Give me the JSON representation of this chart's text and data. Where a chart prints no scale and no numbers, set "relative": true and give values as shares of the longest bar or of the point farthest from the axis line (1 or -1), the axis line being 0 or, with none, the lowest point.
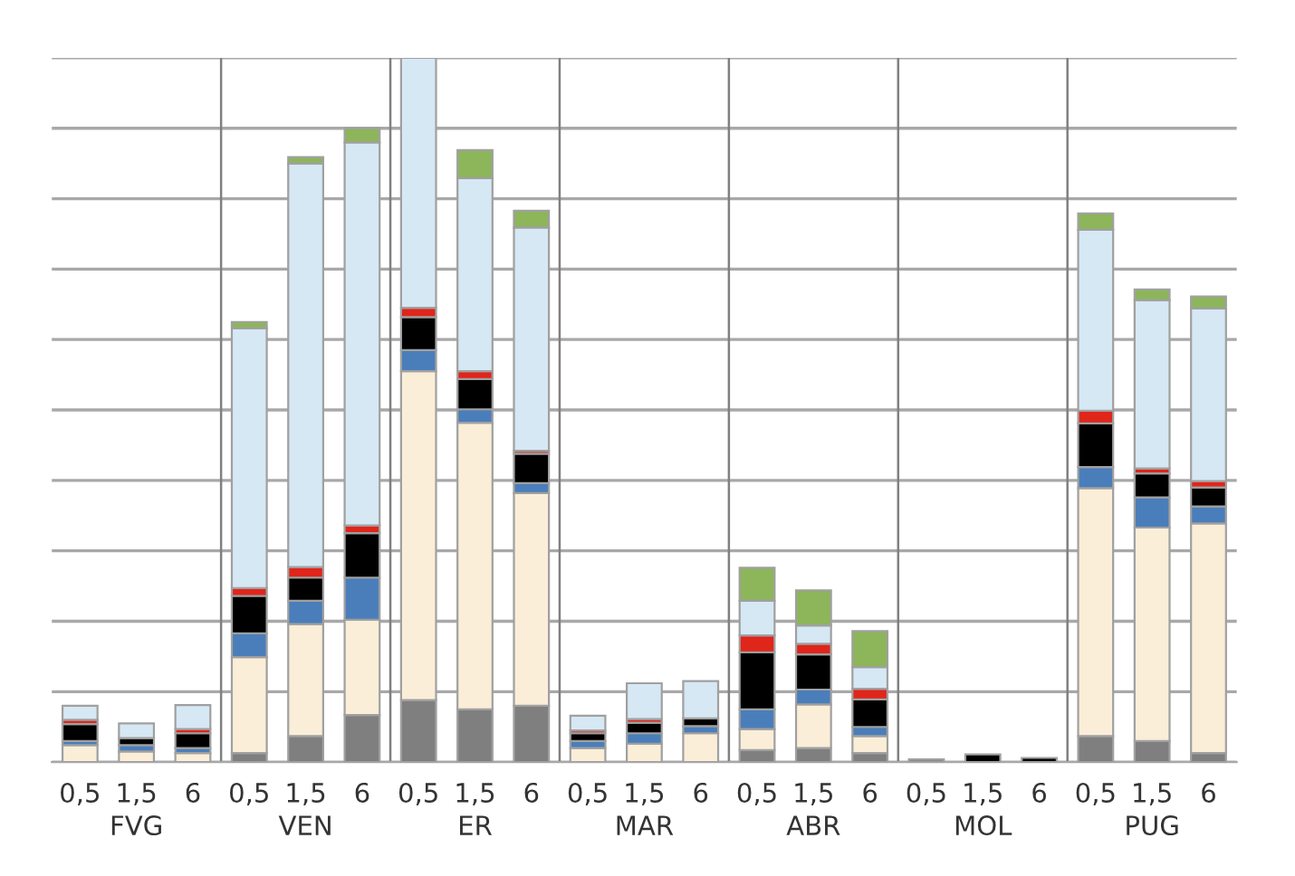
{
  "chart_data": {
    "type": "bar",
    "stacked": true,
    "relative": true,
    "grid": "y",
    "tick_labels": "x",
    "legend": false,
    "categories": [
      "0,5",
      "1,5",
      "6",
      "0,5",
      "1,5",
      "6",
      "0,5",
      "1,5",
      "6",
      "0,5",
      "1,5",
      "6",
      "0,5",
      "1,5",
      "6",
      "0,5",
      "1,5",
      "6",
      "0,5",
      "1,5",
      "6"
    ],
    "annotations": [
      "FVG",
      "VEN",
      "ER",
      "MAR",
      "ABR",
      "MOL",
      "PUG"
    ],
    "series": [
      {
        "color": "#7f7f7f",
        "values": [
          0,
          0,
          0,
          0.013,
          0.037,
          0.067,
          0.088,
          0.075,
          0.08,
          0,
          0,
          0,
          0.017,
          0.02,
          0.013,
          0.004,
          null,
          null,
          0.037,
          0.03,
          0.013
        ]
      },
      {
        "color": "#fbeed8",
        "values": [
          0.024,
          0.015,
          0.013,
          0.136,
          0.159,
          0.135,
          0.467,
          0.407,
          0.302,
          0.02,
          0.026,
          0.041,
          0.03,
          0.062,
          0.024,
          0,
          0,
          0,
          0.352,
          0.303,
          0.326
        ]
      },
      {
        "color": "#4a7ebb",
        "values": [
          0.006,
          0.009,
          0.007,
          0.034,
          0.033,
          0.06,
          0.03,
          0.019,
          0.014,
          0.01,
          0.015,
          0.01,
          0.028,
          0.021,
          0.013,
          0,
          0,
          0,
          0.03,
          0.043,
          0.024
        ]
      },
      {
        "color": "#000000",
        "values": [
          0.024,
          0.01,
          0.021,
          0.053,
          0.033,
          0.063,
          0.047,
          0.043,
          0.042,
          0.011,
          0.015,
          0.011,
          0.081,
          0.05,
          0.039,
          0,
          0.011,
          0.006,
          0.062,
          0.034,
          0.027
        ]
      },
      {
        "color": "#e0251b",
        "values": [
          0.006,
          0,
          0.006,
          0.011,
          0.015,
          0.011,
          0.013,
          0.011,
          0.004,
          0.004,
          0.005,
          0,
          0.024,
          0.015,
          0.015,
          0,
          0,
          0,
          0.018,
          0.007,
          0.009
        ]
      },
      {
        "color": "#d6e8f4",
        "values": [
          0.02,
          0.021,
          0.034,
          0.369,
          0.573,
          0.544,
          0.355,
          0.274,
          0.317,
          0.021,
          0.051,
          0.053,
          0.049,
          0.026,
          0.031,
          0,
          0,
          0,
          0.257,
          0.239,
          0.245
        ]
      },
      {
        "color": "#8db55a",
        "values": [
          0,
          0,
          0,
          0.009,
          0.009,
          0.02,
          0,
          0.04,
          0.024,
          0,
          0,
          0,
          0.047,
          0.05,
          0.051,
          0,
          0,
          0,
          0.023,
          0.015,
          0.017
        ]
      }
    ]
  }
}
